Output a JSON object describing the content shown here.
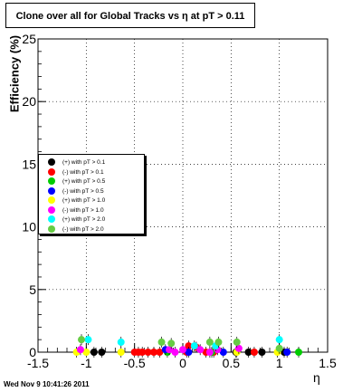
{
  "header": {
    "title": "Clone  over all for Global Tracks vs η at pT > 0.11"
  },
  "footer": {
    "timestamp": "Wed Nov  9 10:41:26 2011"
  },
  "chart_data": {
    "type": "scatter",
    "title": "Clone  over all for Global Tracks vs η at pT > 0.11",
    "xlabel": "η",
    "ylabel": "Efficiency (%)",
    "xlim": [
      -1.5,
      1.5
    ],
    "ylim": [
      0,
      25
    ],
    "x_ticks": [
      "-1.5",
      "-1",
      "-0.5",
      "0",
      "0.5",
      "1",
      "1.5"
    ],
    "y_ticks": [
      "0",
      "5",
      "10",
      "15",
      "20",
      "25"
    ],
    "grid": true,
    "legend_position": "left",
    "series": [
      {
        "name": "(+) with pT > 0.1",
        "color": "#000000",
        "points": [
          [
            -0.92,
            0
          ],
          [
            -0.84,
            0
          ],
          [
            0.55,
            0
          ],
          [
            0.68,
            0
          ],
          [
            0.82,
            0
          ],
          [
            1.05,
            0
          ]
        ]
      },
      {
        "name": "(-) with pT > 0.1",
        "color": "#ff0000",
        "points": [
          [
            -0.5,
            0
          ],
          [
            -0.46,
            0
          ],
          [
            -0.42,
            0
          ],
          [
            -0.36,
            0
          ],
          [
            -0.3,
            0
          ],
          [
            -0.24,
            0
          ],
          [
            0.04,
            0
          ],
          [
            0.06,
            0.5
          ],
          [
            0.14,
            0.4
          ],
          [
            0.24,
            0
          ],
          [
            0.32,
            0
          ],
          [
            0.74,
            0
          ]
        ]
      },
      {
        "name": "(+) with pT > 0.5",
        "color": "#00cc00",
        "points": [
          [
            -0.16,
            0
          ],
          [
            0.3,
            0
          ],
          [
            1.2,
            0
          ]
        ]
      },
      {
        "name": "(-) with pT > 0.5",
        "color": "#0000ff",
        "points": [
          [
            -0.18,
            0.2
          ],
          [
            0.06,
            0
          ],
          [
            0.42,
            0
          ],
          [
            1.08,
            0
          ]
        ]
      },
      {
        "name": "(+) with pT > 1.0",
        "color": "#ffff00",
        "points": [
          [
            -1.1,
            0
          ],
          [
            -1.0,
            0
          ],
          [
            -0.64,
            0
          ],
          [
            0.56,
            0
          ],
          [
            0.98,
            0
          ]
        ]
      },
      {
        "name": "(-) with pT > 1.0",
        "color": "#ff00ff",
        "points": [
          [
            -1.06,
            0.2
          ],
          [
            -0.14,
            0.2
          ],
          [
            -0.08,
            0
          ],
          [
            0.0,
            0.2
          ],
          [
            0.18,
            0.2
          ],
          [
            0.28,
            0
          ],
          [
            0.36,
            0.2
          ],
          [
            0.58,
            0.3
          ]
        ]
      },
      {
        "name": "(+) with pT > 2.0",
        "color": "#00ffff",
        "points": [
          [
            -0.98,
            1.0
          ],
          [
            -0.64,
            0.8
          ],
          [
            0.12,
            0.5
          ],
          [
            0.34,
            0.5
          ],
          [
            1.0,
            1.0
          ]
        ]
      },
      {
        "name": "(-) with pT > 2.0",
        "color": "#66cc44",
        "points": [
          [
            -1.05,
            1.0
          ],
          [
            -0.22,
            0.8
          ],
          [
            -0.12,
            0.7
          ],
          [
            0.28,
            0.8
          ],
          [
            0.37,
            0.8
          ],
          [
            0.56,
            0.8
          ],
          [
            1.0,
            0.3
          ]
        ]
      }
    ]
  }
}
